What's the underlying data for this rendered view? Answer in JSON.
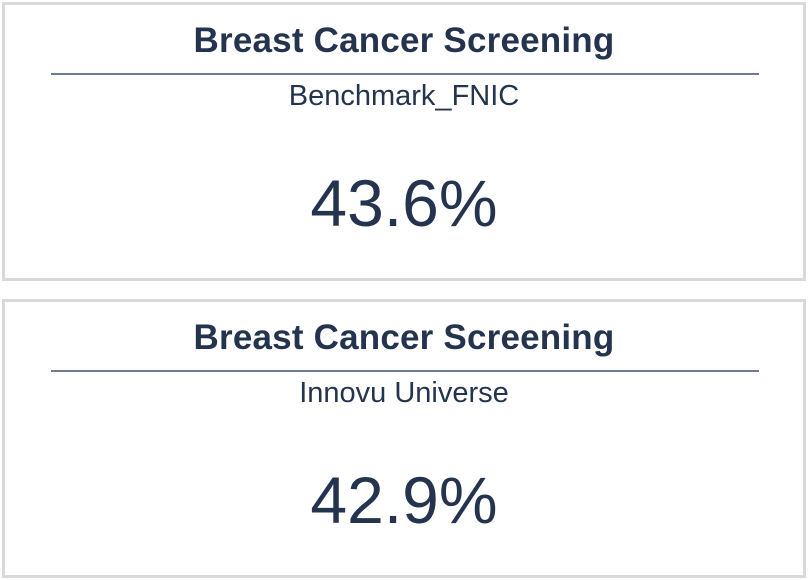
{
  "cards": [
    {
      "title": "Breast Cancer Screening",
      "subtitle": "Benchmark_FNIC",
      "value": "43.6%"
    },
    {
      "title": "Breast Cancer Screening",
      "subtitle": "Innovu Universe",
      "value": "42.9%"
    }
  ],
  "colors": {
    "text": "#24344f",
    "rule": "#6e7c92",
    "card_border": "#d9d9d9"
  }
}
